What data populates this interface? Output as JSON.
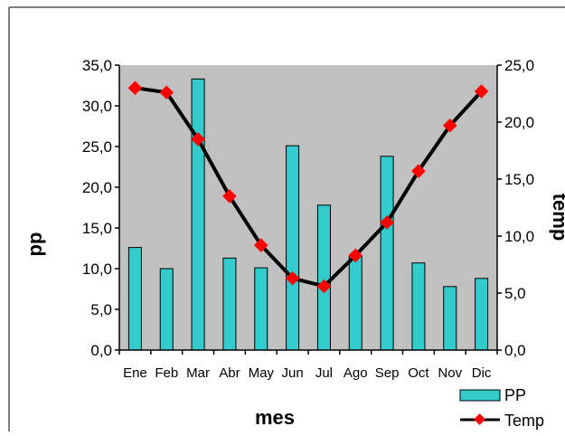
{
  "chart_data": {
    "type": "bar",
    "xlabel": "mes",
    "ylabel_left": "pp",
    "ylabel_right": "temp",
    "categories": [
      "Ene",
      "Feb",
      "Mar",
      "Abr",
      "May",
      "Jun",
      "Jul",
      "Ago",
      "Sep",
      "Oct",
      "Nov",
      "Dic"
    ],
    "ylim_left": [
      0,
      35
    ],
    "ylim_right": [
      0,
      25
    ],
    "yticks_left": [
      "0,0",
      "5,0",
      "10,0",
      "15,0",
      "20,0",
      "25,0",
      "30,0",
      "35,0"
    ],
    "yticks_right": [
      "0,0",
      "5,0",
      "10,0",
      "15,0",
      "20,0",
      "25,0"
    ],
    "plot_background": "#c0c0c0",
    "grid": false,
    "legend_position": "bottom-right",
    "series": [
      {
        "name": "PP",
        "type": "bar",
        "axis": "left",
        "color": "#33cccc",
        "values": [
          12.6,
          10.0,
          33.3,
          11.3,
          10.1,
          25.1,
          17.8,
          11.5,
          23.8,
          10.7,
          7.8,
          8.8
        ]
      },
      {
        "name": "Temp",
        "type": "line",
        "axis": "right",
        "line_color": "#000000",
        "marker_color": "#ff0000",
        "values": [
          23.0,
          22.6,
          18.5,
          13.5,
          9.2,
          6.3,
          5.6,
          8.3,
          11.2,
          15.7,
          19.7,
          22.7
        ]
      }
    ]
  }
}
